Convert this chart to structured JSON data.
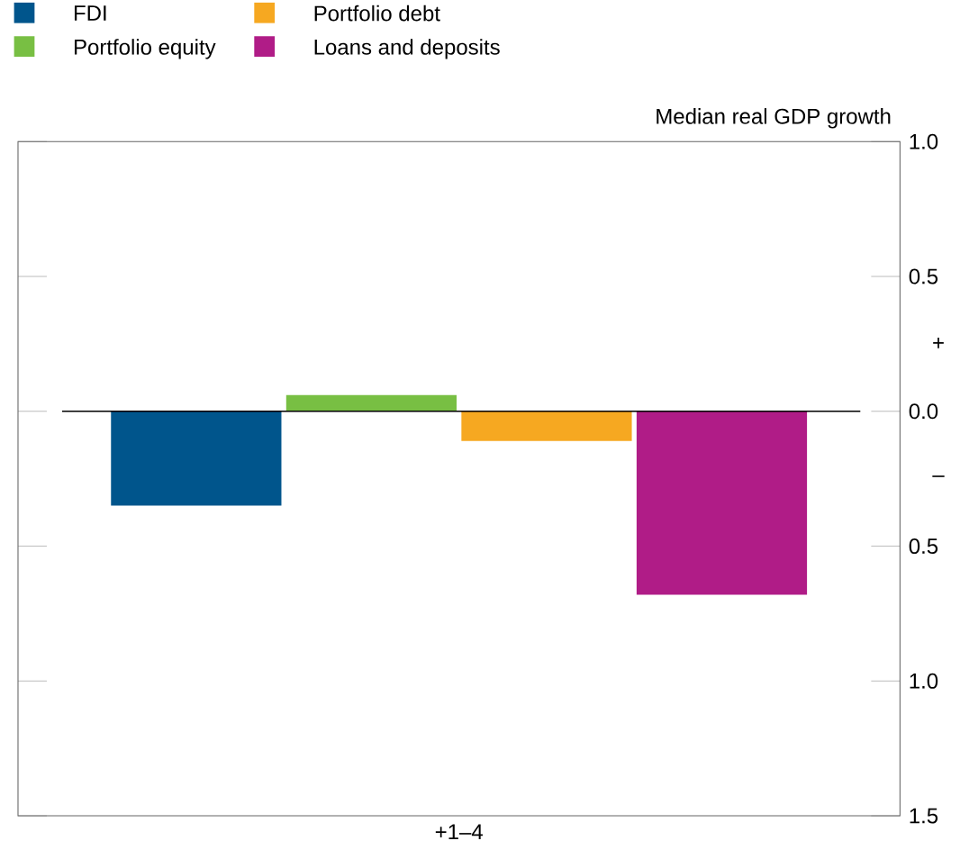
{
  "chart_data": {
    "type": "bar",
    "ylabel": "Median real GDP growth",
    "categories": [
      "+1–4"
    ],
    "series": [
      {
        "name": "FDI",
        "color": "#00558c",
        "values": [
          -0.35
        ]
      },
      {
        "name": "Portfolio equity",
        "color": "#78bf43",
        "values": [
          0.06
        ]
      },
      {
        "name": "Portfolio debt",
        "color": "#f6a821",
        "values": [
          -0.11
        ]
      },
      {
        "name": "Loans and deposits",
        "color": "#b01c87",
        "values": [
          -0.68
        ]
      }
    ],
    "ylim": [
      -1.5,
      1.0
    ],
    "yticks": [
      {
        "value": -1.5,
        "label": "1.5"
      },
      {
        "value": -1.0,
        "label": "1.0"
      },
      {
        "value": -0.5,
        "label": "0.5"
      },
      {
        "value": 0.0,
        "label": "0.0"
      },
      0.5,
      {
        "value": 1.0,
        "label": "1.0"
      }
    ],
    "ref_lines": [
      {
        "axis": "y",
        "value": 0,
        "color": "#000000"
      }
    ],
    "annotations": [
      "+",
      "–"
    ],
    "legend": "top left",
    "grid": false
  }
}
